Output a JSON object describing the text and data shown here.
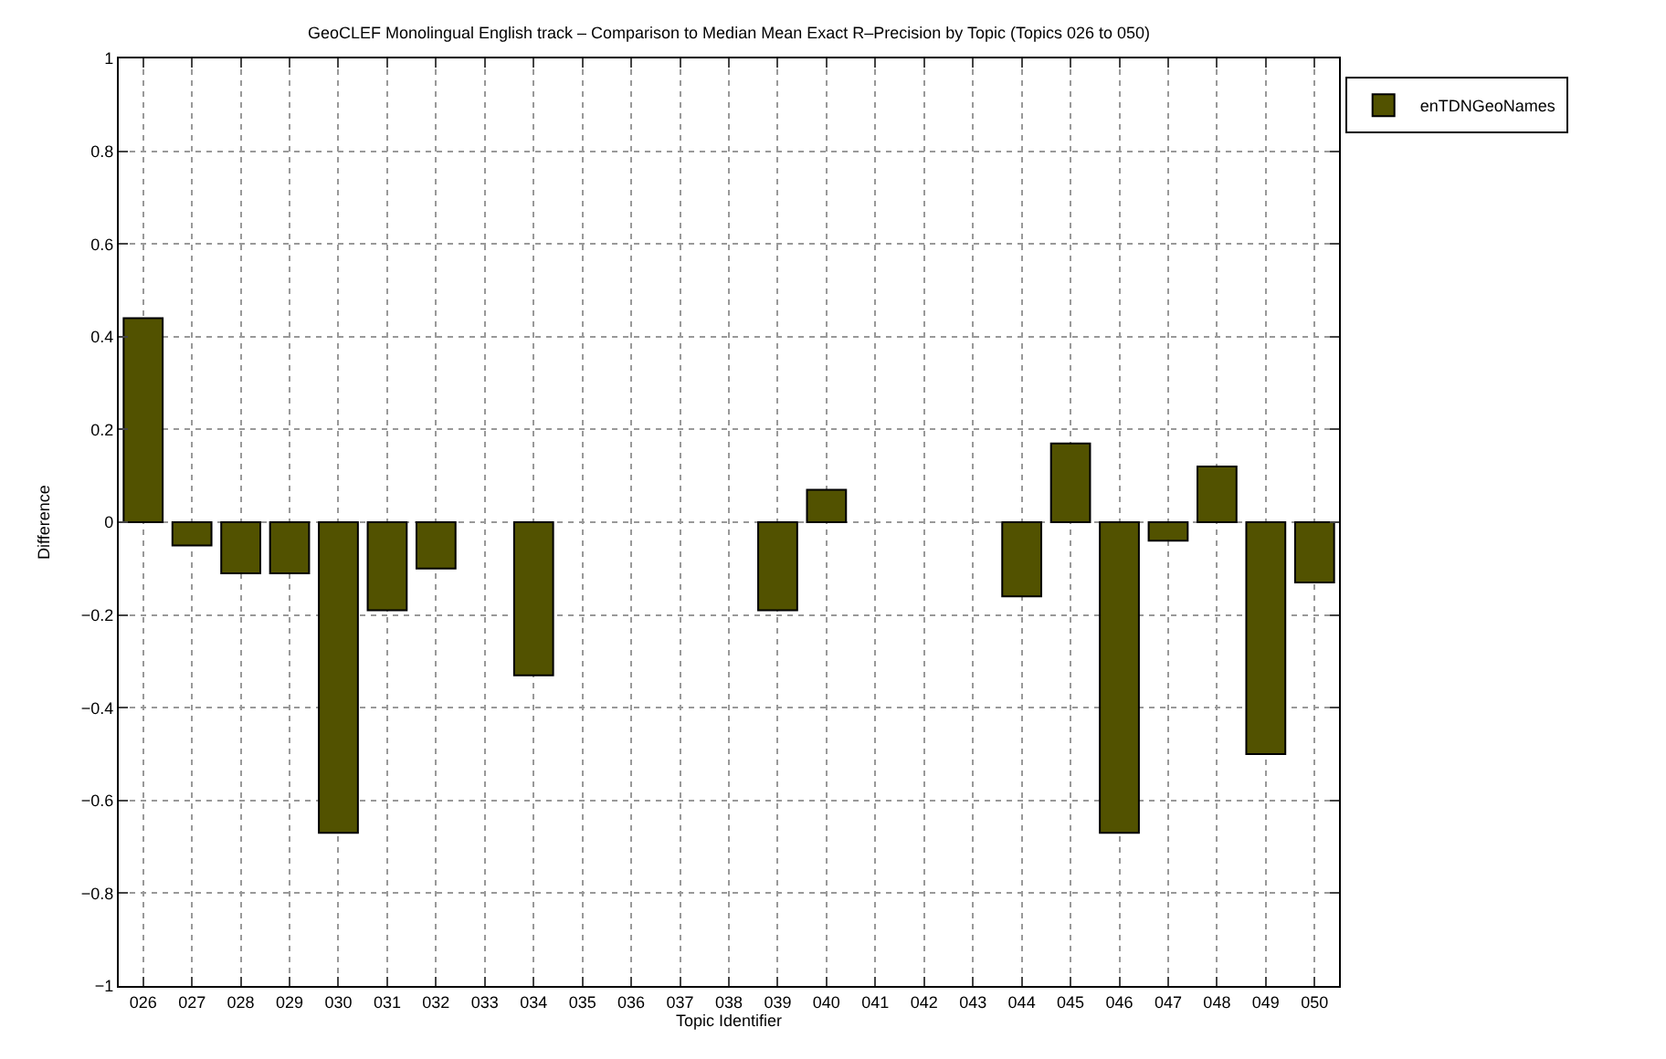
{
  "chart_data": {
    "type": "bar",
    "title": "GeoCLEF Monolingual English track – Comparison to Median Mean Exact R–Precision by Topic (Topics 026 to 050)",
    "xlabel": "Topic Identifier",
    "ylabel": "Difference",
    "categories": [
      "026",
      "027",
      "028",
      "029",
      "030",
      "031",
      "032",
      "033",
      "034",
      "035",
      "036",
      "037",
      "038",
      "039",
      "040",
      "041",
      "042",
      "043",
      "044",
      "045",
      "046",
      "047",
      "048",
      "049",
      "050"
    ],
    "series": [
      {
        "name": "enTDNGeoNames",
        "color": "#525200",
        "values": [
          0.44,
          -0.05,
          -0.11,
          -0.11,
          -0.67,
          -0.19,
          -0.1,
          0,
          -0.33,
          0,
          0,
          0,
          0,
          -0.19,
          0.07,
          0,
          0,
          0,
          -0.16,
          0.17,
          -0.67,
          -0.04,
          0.12,
          -0.5,
          -0.13
        ]
      }
    ],
    "ylim": [
      -1,
      1
    ],
    "yticks": [
      -1,
      -0.8,
      -0.6,
      -0.4,
      -0.2,
      0,
      0.2,
      0.4,
      0.6,
      0.8,
      1
    ],
    "grid": true,
    "legend": "top right"
  }
}
